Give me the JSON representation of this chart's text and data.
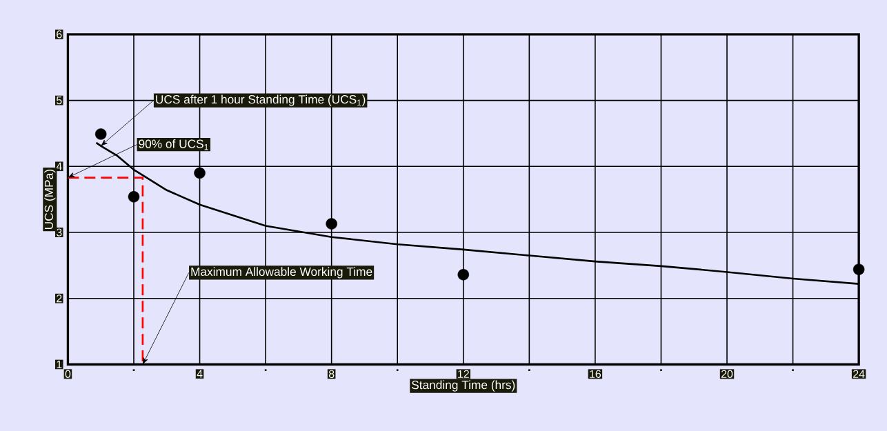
{
  "chart_data": {
    "type": "scatter",
    "xlabel": "Standing Time (hrs)",
    "ylabel": "UCS (MPa)",
    "xlim": [
      0,
      24
    ],
    "ylim": [
      1,
      6
    ],
    "xticks": [
      0,
      {
        "value": 2,
        "label": null
      },
      4,
      {
        "value": 6,
        "label": null
      },
      8,
      {
        "value": 10,
        "label": null
      },
      12,
      {
        "value": 14,
        "label": null
      },
      16,
      {
        "value": 18,
        "label": null
      },
      20,
      {
        "value": 22,
        "label": null
      },
      24
    ],
    "yticks": [
      1,
      2,
      3,
      4,
      5,
      6
    ],
    "grid": true,
    "series": [
      {
        "color": "#000000",
        "marker": "circle",
        "x": [
          1,
          2,
          4,
          8,
          12,
          24
        ],
        "values": [
          4.49,
          3.54,
          3.9,
          3.13,
          2.36,
          2.44
        ]
      },
      {
        "type": "line",
        "color": "#000000",
        "marker": "none",
        "line_style": "solid",
        "x": [
          0.86,
          1,
          1.5,
          2,
          3,
          4,
          6,
          8,
          10,
          12,
          14,
          16,
          18,
          20,
          22,
          24
        ],
        "values": [
          4.36,
          4.31,
          4.16,
          3.95,
          3.64,
          3.42,
          3.1,
          2.93,
          2.82,
          2.74,
          2.65,
          2.56,
          2.49,
          2.4,
          2.3,
          2.22
        ]
      },
      {
        "type": "line",
        "color": "#ff0000",
        "marker": "none",
        "line_style": "dashed",
        "x": [
          0,
          2.27,
          2.27
        ],
        "values": [
          3.83,
          3.83,
          1
        ]
      }
    ],
    "annotations": [
      {
        "text": "UCS after 1 hour Standing Time (UCS$_{1}$)",
        "x": 1,
        "y": 4.31
      },
      {
        "text": "90% of UCS$_{1}$",
        "x": 0,
        "y": 3.83
      },
      {
        "text": "Maximum Allowable Working Time",
        "x": 2.27,
        "y": 1
      }
    ]
  }
}
